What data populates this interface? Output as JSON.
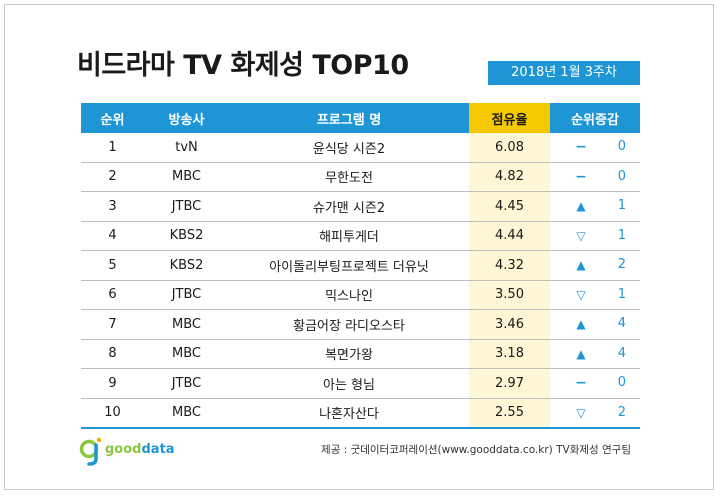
{
  "title": "비드라마 TV 화제성 TOP10",
  "date_label": "2018년 1월 3주차",
  "headers": {
    "rank": "순위",
    "channel": "방송사",
    "program": "프로그램 명",
    "share": "점유율",
    "change": "순위증감"
  },
  "chart_data": {
    "type": "table",
    "title": "비드라마 TV 화제성 TOP10",
    "subtitle": "2018년 1월 3주차",
    "columns": [
      "순위",
      "방송사",
      "프로그램 명",
      "점유율",
      "순위증감"
    ],
    "rows": [
      {
        "rank": "1",
        "channel": "tvN",
        "program": "윤식당 시즌2",
        "share": "6.08",
        "dir": "same",
        "symbol": "−",
        "change": "0"
      },
      {
        "rank": "2",
        "channel": "MBC",
        "program": "무한도전",
        "share": "4.82",
        "dir": "same",
        "symbol": "−",
        "change": "0"
      },
      {
        "rank": "3",
        "channel": "JTBC",
        "program": "슈가맨 시즌2",
        "share": "4.45",
        "dir": "up",
        "symbol": "▲",
        "change": "1"
      },
      {
        "rank": "4",
        "channel": "KBS2",
        "program": "해피투게더",
        "share": "4.44",
        "dir": "down",
        "symbol": "▽",
        "change": "1"
      },
      {
        "rank": "5",
        "channel": "KBS2",
        "program": "아이돌리부팅프로젝트 더유닛",
        "share": "4.32",
        "dir": "up",
        "symbol": "▲",
        "change": "2"
      },
      {
        "rank": "6",
        "channel": "JTBC",
        "program": "믹스나인",
        "share": "3.50",
        "dir": "down",
        "symbol": "▽",
        "change": "1"
      },
      {
        "rank": "7",
        "channel": "MBC",
        "program": "황금어장 라디오스타",
        "share": "3.46",
        "dir": "up",
        "symbol": "▲",
        "change": "4"
      },
      {
        "rank": "8",
        "channel": "MBC",
        "program": "복면가왕",
        "share": "3.18",
        "dir": "up",
        "symbol": "▲",
        "change": "4"
      },
      {
        "rank": "9",
        "channel": "JTBC",
        "program": "아는 형님",
        "share": "2.97",
        "dir": "same",
        "symbol": "−",
        "change": "0"
      },
      {
        "rank": "10",
        "channel": "MBC",
        "program": "나혼자산다",
        "share": "2.55",
        "dir": "down",
        "symbol": "▽",
        "change": "2"
      }
    ]
  },
  "logo": {
    "good": "good",
    "data": "data"
  },
  "source": "제공 : 굿데이터코퍼레이션(www.gooddata.co.kr) TV화제성 연구팀",
  "colors": {
    "accent_blue": "#1e96d6",
    "accent_yellow": "#f5c800",
    "share_bg": "#fdf7d6",
    "logo_green": "#8cc63f"
  }
}
